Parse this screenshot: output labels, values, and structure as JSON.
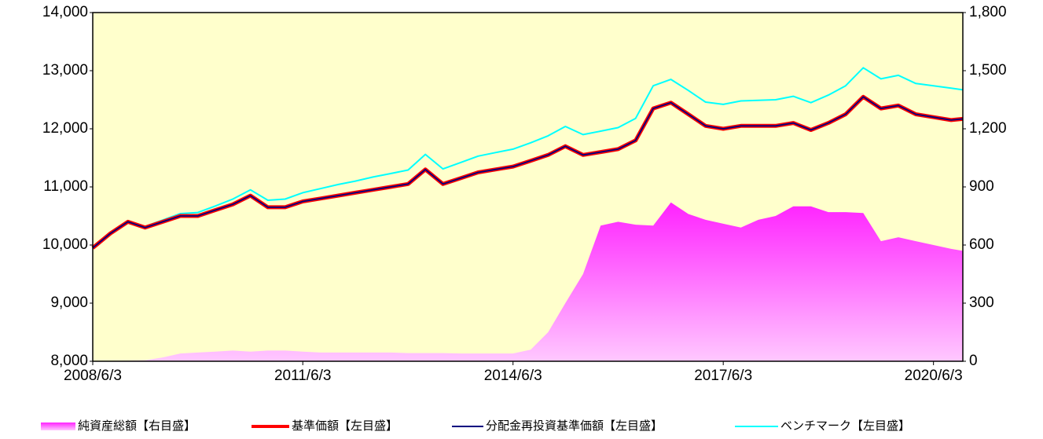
{
  "chart_data": {
    "type": "line",
    "x": [
      "2008/6/3",
      "2008/9/3",
      "2008/12/3",
      "2009/3/3",
      "2009/6/3",
      "2009/9/3",
      "2009/12/3",
      "2010/3/3",
      "2010/6/3",
      "2010/9/3",
      "2010/12/3",
      "2011/3/3",
      "2011/6/3",
      "2011/9/3",
      "2011/12/3",
      "2012/3/3",
      "2012/6/3",
      "2012/9/3",
      "2012/12/3",
      "2013/3/3",
      "2013/6/3",
      "2013/9/3",
      "2013/12/3",
      "2014/3/3",
      "2014/6/3",
      "2014/9/3",
      "2014/12/3",
      "2015/3/3",
      "2015/6/3",
      "2015/9/3",
      "2015/12/3",
      "2016/3/3",
      "2016/6/3",
      "2016/9/3",
      "2016/12/3",
      "2017/3/3",
      "2017/6/3",
      "2017/9/3",
      "2017/12/3",
      "2018/3/3",
      "2018/6/3",
      "2018/9/3",
      "2018/12/3",
      "2019/3/3",
      "2019/6/3",
      "2019/9/3",
      "2019/12/3",
      "2020/3/3",
      "2020/6/3",
      "2020/9/3",
      "2020/11/3"
    ],
    "xlim": [
      "2008/6/3",
      "2020/11/3"
    ],
    "xticks": [
      "2008/6/3",
      "2011/6/3",
      "2014/6/3",
      "2017/6/3",
      "2020/6/3"
    ],
    "ylim": [
      8000,
      14000
    ],
    "yticks": [
      {
        "value": 8000,
        "label": "8,000"
      },
      {
        "value": 9000,
        "label": "9,000"
      },
      {
        "value": 10000,
        "label": "10,000"
      },
      {
        "value": 11000,
        "label": "11,000"
      },
      {
        "value": 12000,
        "label": "12,000"
      },
      {
        "value": 13000,
        "label": "13,000"
      },
      {
        "value": 14000,
        "label": "14,000"
      }
    ],
    "y2lim": [
      0,
      1800
    ],
    "y2ticks": [
      0,
      300,
      600,
      900,
      {
        "value": 1200,
        "label": "1,200"
      },
      {
        "value": 1500,
        "label": "1,500"
      },
      {
        "value": 1800,
        "label": "1,800"
      }
    ],
    "series": [
      {
        "name": "純資産総額【右目盛】",
        "color": "#ff33ff",
        "type": "area",
        "axis": "y2",
        "values": [
          0,
          2,
          3,
          5,
          20,
          40,
          45,
          50,
          55,
          50,
          55,
          55,
          50,
          45,
          45,
          45,
          45,
          45,
          42,
          42,
          42,
          40,
          40,
          40,
          40,
          60,
          150,
          300,
          450,
          700,
          720,
          705,
          700,
          820,
          760,
          730,
          710,
          690,
          730,
          750,
          800,
          800,
          770,
          770,
          765,
          620,
          640,
          620,
          600,
          580,
          570
        ]
      },
      {
        "name": "基準価額【左目盛】",
        "color": "#ff0000",
        "type": "line",
        "values": [
          9950,
          10200,
          10400,
          10300,
          10400,
          10500,
          10500,
          10600,
          10700,
          10850,
          10650,
          10650,
          10750,
          10800,
          10850,
          10900,
          10950,
          11000,
          11050,
          11300,
          11050,
          11150,
          11250,
          11300,
          11350,
          11450,
          11550,
          11700,
          11550,
          11600,
          11650,
          11800,
          12350,
          12450,
          12250,
          12050,
          12000,
          12050,
          12050,
          12050,
          12100,
          11980,
          12100,
          12250,
          12550,
          12350,
          12400,
          12250,
          12200,
          12150,
          12170
        ]
      },
      {
        "name": "分配金再投資基準価額【左目盛】",
        "color": "#000080",
        "type": "line",
        "values": [
          9950,
          10200,
          10400,
          10300,
          10400,
          10500,
          10500,
          10600,
          10700,
          10850,
          10650,
          10650,
          10750,
          10800,
          10850,
          10900,
          10950,
          11000,
          11050,
          11300,
          11050,
          11150,
          11250,
          11300,
          11350,
          11450,
          11550,
          11700,
          11550,
          11600,
          11650,
          11800,
          12350,
          12450,
          12250,
          12050,
          12000,
          12050,
          12050,
          12050,
          12100,
          11980,
          12100,
          12250,
          12550,
          12350,
          12400,
          12250,
          12200,
          12150,
          12170
        ]
      },
      {
        "name": "ベンチマーク【左目盛】",
        "color": "#00ffff",
        "type": "line",
        "values": [
          9960,
          10210,
          10420,
          10320,
          10430,
          10540,
          10560,
          10670,
          10790,
          10950,
          10770,
          10790,
          10900,
          10970,
          11040,
          11100,
          11170,
          11230,
          11290,
          11560,
          11310,
          11420,
          11530,
          11590,
          11650,
          11760,
          11880,
          12040,
          11900,
          11960,
          12020,
          12180,
          12740,
          12850,
          12660,
          12460,
          12420,
          12480,
          12490,
          12500,
          12560,
          12450,
          12580,
          12740,
          13050,
          12860,
          12920,
          12780,
          12740,
          12700,
          12670
        ]
      }
    ]
  }
}
